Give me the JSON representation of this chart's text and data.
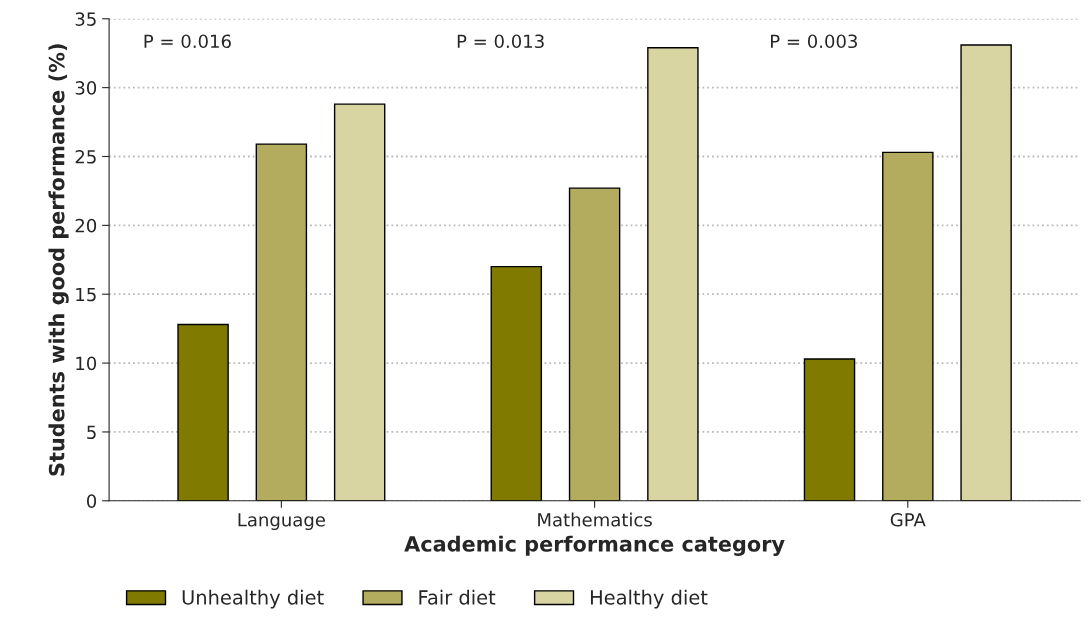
{
  "chart_data": {
    "type": "bar",
    "categories": [
      "Language",
      "Mathematics",
      "GPA"
    ],
    "series": [
      {
        "name": "Unhealthy diet",
        "color": "#807b00",
        "values": [
          12.8,
          17.0,
          10.3
        ]
      },
      {
        "name": "Fair diet",
        "color": "#b3ac5f",
        "values": [
          25.9,
          22.7,
          25.3
        ]
      },
      {
        "name": "Healthy diet",
        "color": "#d8d5a2",
        "values": [
          28.8,
          32.9,
          33.1
        ]
      }
    ],
    "xlabel": "Academic performance category",
    "ylabel": "Students with good performance (%)",
    "ylim": [
      0,
      35
    ],
    "yticks": [
      0,
      5,
      10,
      15,
      20,
      25,
      30,
      35
    ],
    "grid": "y",
    "legend": "bottom",
    "annotations": [
      "P = 0.016",
      "P = 0.013",
      "P = 0.003"
    ]
  }
}
